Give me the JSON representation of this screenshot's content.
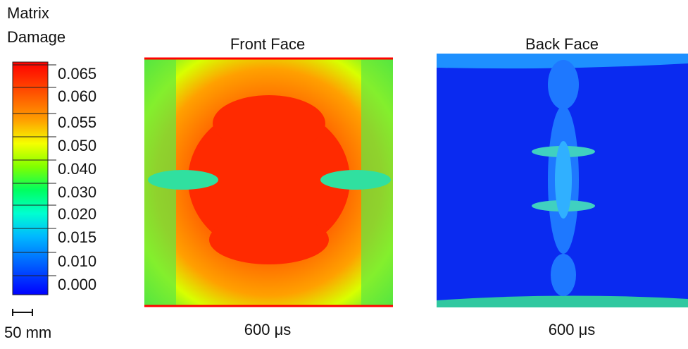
{
  "legend": {
    "title_line1": "Matrix",
    "title_line2": "Damage",
    "labels": [
      "0.065",
      "0.060",
      "0.055",
      "0.050",
      "0.040",
      "0.030",
      "0.020",
      "0.015",
      "0.010",
      "0.000"
    ]
  },
  "scale_bar": {
    "label": "50 mm"
  },
  "panels": [
    {
      "title": "Front Face",
      "caption": "600 μs"
    },
    {
      "title": "Back Face",
      "caption": "600 μs"
    }
  ]
}
